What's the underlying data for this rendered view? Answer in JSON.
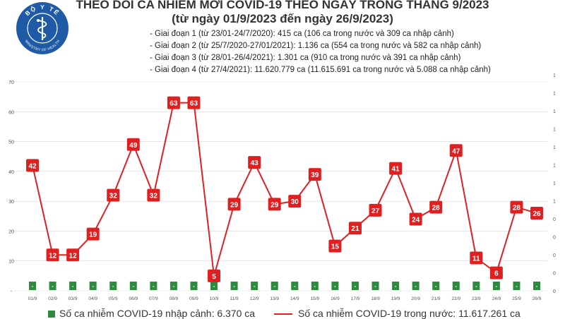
{
  "header": {
    "title_line1": "THEO DÕI CA NHIỄM MỚI COVID-19 THEO NGÀY TRONG THÁNG 9/2023",
    "title_line2": "(từ ngày 01/9/2023 đến ngày 26/9/2023)",
    "logo_text_top": "BỘ Y TẾ",
    "logo_text_bottom": "MINISTRY OF HEALTH"
  },
  "phases": [
    "- Giai đoạn 1 (từ 23/01-24/7/2020): 415 ca (106 ca trong nước và 309 ca nhập cảnh)",
    "- Giai đoạn 2 (từ 25/7/2020-27/01/2021): 1.136 ca (554 ca trong nước và 582 ca nhập cảnh)",
    "- Giai đoạn 3 (từ 28/01-26/4/2021): 1.301 ca (910 ca trong nước và 391 ca nhập cảnh)",
    "- Giai đoạn 4 (từ 27/4/2021): 11.620.779 ca (11.615.691 ca trong nước và 5.088 ca nhập cảnh)"
  ],
  "colors": {
    "line": "#e02020",
    "bar": "#2e8b3e",
    "label_bg": "#e02020",
    "logo": "#1f5aa6",
    "grid": "#d9d9d9"
  },
  "chart_data": {
    "type": "line",
    "categories": [
      "01/9",
      "02/9",
      "03/9",
      "04/9",
      "05/9",
      "06/9",
      "07/9",
      "08/9",
      "09/9",
      "10/9",
      "11/9",
      "12/9",
      "13/9",
      "14/9",
      "15/9",
      "16/9",
      "17/9",
      "18/9",
      "19/9",
      "20/9",
      "21/9",
      "22/9",
      "23/9",
      "24/9",
      "25/9",
      "26/9"
    ],
    "series": [
      {
        "name": "Số ca nhiễm COVID-19 trong nước: 11.617.261 ca",
        "kind": "line",
        "axis": "left",
        "values": [
          42,
          12,
          12,
          19,
          32,
          49,
          32,
          63,
          63,
          5,
          29,
          43,
          29,
          30,
          39,
          15,
          21,
          27,
          41,
          24,
          28,
          47,
          11,
          6,
          28,
          26
        ]
      },
      {
        "name": "Số ca nhiễm COVID-19 nhập cảnh: 6.370 ca",
        "kind": "bar",
        "axis": "right",
        "values": [
          0,
          0,
          0,
          0,
          0,
          0,
          0,
          0,
          0,
          0,
          0,
          0,
          0,
          0,
          0,
          0,
          0,
          0,
          0,
          0,
          0,
          0,
          0,
          0,
          0,
          0
        ],
        "value_label": "-"
      }
    ],
    "left_axis": {
      "ylim": [
        0,
        70
      ],
      "ticks": [
        "-",
        "10",
        "20",
        "30",
        "40",
        "50",
        "60",
        "70"
      ]
    },
    "right_axis": {
      "ticks": [
        "0",
        "0",
        "0",
        "0",
        "0",
        "1",
        "1",
        "1",
        "1",
        "1",
        "1",
        "1",
        "1"
      ]
    },
    "grid": true,
    "legend_position": "bottom"
  }
}
